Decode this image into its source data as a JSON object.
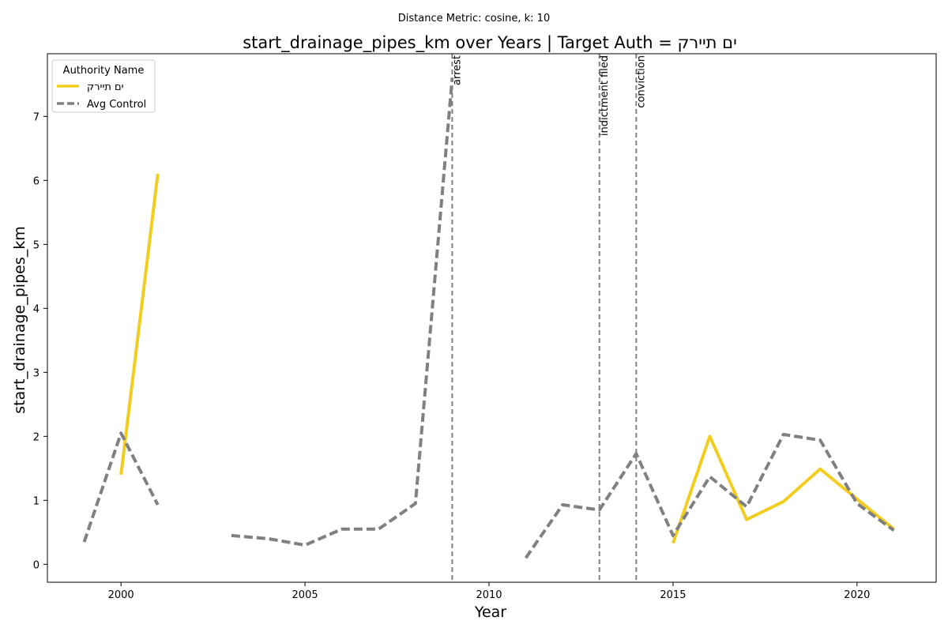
{
  "chart_data": {
    "type": "line",
    "subtitle": "Distance Metric: cosine, k: 10",
    "title": "start_drainage_pipes_km over Years | Target Auth = ים תיירק",
    "xlabel": "Year",
    "ylabel": "start_drainage_pipes_km",
    "xlim": [
      1998,
      2022.15
    ],
    "ylim": [
      -0.28,
      7.98
    ],
    "x_ticks": [
      2000,
      2005,
      2010,
      2015,
      2020
    ],
    "y_ticks": [
      0,
      1,
      2,
      3,
      4,
      5,
      6,
      7
    ],
    "grid": false,
    "legend": {
      "title": "Authority Name",
      "placement": "top-left"
    },
    "series": [
      {
        "name": "ים תיירק",
        "color": "#f2cd1f",
        "style": "solid",
        "points": [
          [
            2000,
            1.4
          ],
          [
            2001,
            6.1
          ],
          [
            2002,
            null
          ],
          [
            2014,
            null
          ],
          [
            2015,
            0.33
          ],
          [
            2016,
            2.0
          ],
          [
            2017,
            0.7
          ],
          [
            2018,
            0.98
          ],
          [
            2019,
            1.49
          ],
          [
            2020,
            1.02
          ],
          [
            2021,
            0.55
          ]
        ]
      },
      {
        "name": "Avg Control",
        "color": "#808080",
        "style": "dashed",
        "points": [
          [
            1999,
            0.35
          ],
          [
            2000,
            2.05
          ],
          [
            2001,
            0.93
          ],
          [
            2002,
            null
          ],
          [
            2003,
            0.45
          ],
          [
            2004,
            0.4
          ],
          [
            2005,
            0.3
          ],
          [
            2006,
            0.55
          ],
          [
            2007,
            0.55
          ],
          [
            2008,
            0.95
          ],
          [
            2009,
            7.6
          ],
          [
            2010,
            null
          ],
          [
            2011,
            0.1
          ],
          [
            2012,
            0.93
          ],
          [
            2013,
            0.85
          ],
          [
            2014,
            1.73
          ],
          [
            2015,
            0.45
          ],
          [
            2016,
            1.37
          ],
          [
            2017,
            0.9
          ],
          [
            2018,
            2.03
          ],
          [
            2019,
            1.94
          ],
          [
            2020,
            0.95
          ],
          [
            2021,
            0.53
          ]
        ]
      }
    ],
    "events": [
      {
        "x": 2009,
        "label": "arrest"
      },
      {
        "x": 2013,
        "label": "indictment filed"
      },
      {
        "x": 2014,
        "label": "conviction"
      }
    ]
  }
}
